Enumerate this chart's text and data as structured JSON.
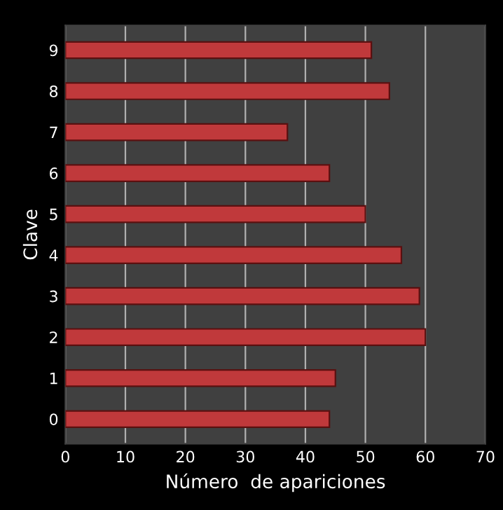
{
  "chart_data": {
    "type": "bar",
    "orientation": "horizontal",
    "categories": [
      "9",
      "8",
      "7",
      "6",
      "5",
      "4",
      "3",
      "2",
      "1",
      "0"
    ],
    "values": [
      51,
      54,
      37,
      44,
      50,
      56,
      59,
      60,
      45,
      44
    ],
    "color": "#c0393b",
    "xlabel": "Número  de apariciones",
    "ylabel": "Clave",
    "xlim": [
      0,
      70
    ],
    "xticks": [
      0,
      10,
      20,
      30,
      40,
      50,
      60,
      70
    ],
    "grid": "x",
    "legend": false
  }
}
